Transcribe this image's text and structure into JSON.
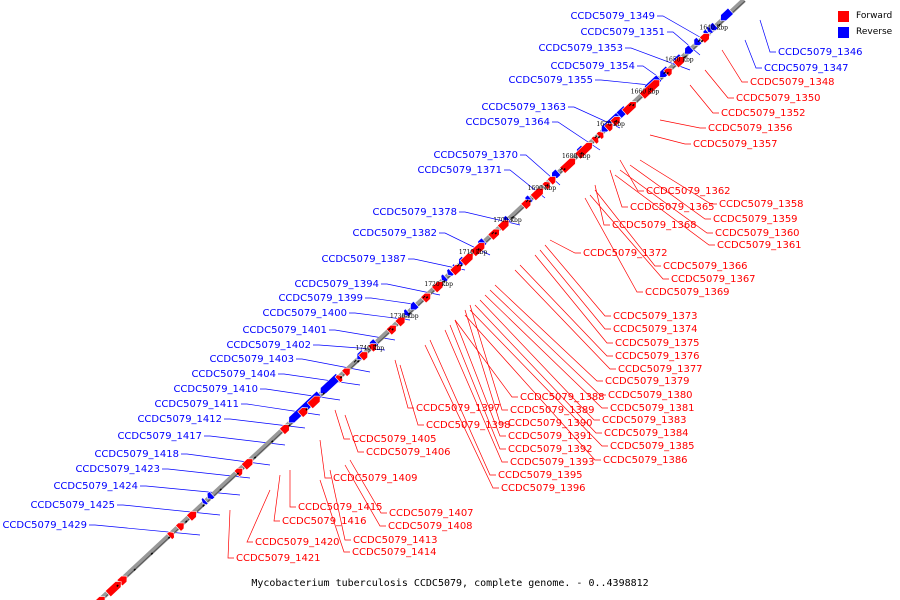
{
  "title": "Mycobacterium tuberculosis CCDC5079, complete genome. - 0..4398812",
  "legend": [
    {
      "label": "Forward",
      "color": "#ff0000"
    },
    {
      "label": "Reverse",
      "color": "#0000ff"
    }
  ],
  "colors": {
    "forward": "#ff0000",
    "reverse": "#0000ff",
    "backbone": "#999999",
    "line": "#000000"
  },
  "ticks": [
    "1640 kbp",
    "1650 kbp",
    "1660 kbp",
    "1670 kbp",
    "1680 kbp",
    "1690 kbp",
    "1700 kbp",
    "1710 kbp",
    "1720 kbp",
    "1730 kbp",
    "1740 kbp"
  ],
  "reverse_labels": [
    "CCDC5079_1349",
    "CCDC5079_1351",
    "CCDC5079_1353",
    "CCDC5079_1354",
    "CCDC5079_1355",
    "CCDC5079_1363",
    "CCDC5079_1364",
    "CCDC5079_1370",
    "CCDC5079_1371",
    "CCDC5079_1378",
    "CCDC5079_1382",
    "CCDC5079_1387",
    "CCDC5079_1394",
    "CCDC5079_1399",
    "CCDC5079_1400",
    "CCDC5079_1401",
    "CCDC5079_1402",
    "CCDC5079_1403",
    "CCDC5079_1404",
    "CCDC5079_1410",
    "CCDC5079_1411",
    "CCDC5079_1412",
    "CCDC5079_1417",
    "CCDC5079_1418",
    "CCDC5079_1423",
    "CCDC5079_1424",
    "CCDC5079_1425",
    "CCDC5079_1429",
    "CCDC5079_1346",
    "CCDC5079_1347"
  ],
  "forward_labels": [
    "CCDC5079_1348",
    "CCDC5079_1350",
    "CCDC5079_1352",
    "CCDC5079_1356",
    "CCDC5079_1357",
    "CCDC5079_1362",
    "CCDC5079_1358",
    "CCDC5079_1365",
    "CCDC5079_1359",
    "CCDC5079_1368",
    "CCDC5079_1360",
    "CCDC5079_1361",
    "CCDC5079_1372",
    "CCDC5079_1366",
    "CCDC5079_1367",
    "CCDC5079_1369",
    "CCDC5079_1373",
    "CCDC5079_1374",
    "CCDC5079_1375",
    "CCDC5079_1376",
    "CCDC5079_1377",
    "CCDC5079_1379",
    "CCDC5079_1388",
    "CCDC5079_1380",
    "CCDC5079_1397",
    "CCDC5079_1389",
    "CCDC5079_1381",
    "CCDC5079_1398",
    "CCDC5079_1390",
    "CCDC5079_1383",
    "CCDC5079_1405",
    "CCDC5079_1391",
    "CCDC5079_1384",
    "CCDC5079_1406",
    "CCDC5079_1392",
    "CCDC5079_1385",
    "CCDC5079_1393",
    "CCDC5079_1386",
    "CCDC5079_1395",
    "CCDC5079_1409",
    "CCDC5079_1396",
    "CCDC5079_1415",
    "CCDC5079_1407",
    "CCDC5079_1416",
    "CCDC5079_1408",
    "CCDC5079_1413",
    "CCDC5079_1420",
    "CCDC5079_1414",
    "CCDC5079_1421"
  ]
}
